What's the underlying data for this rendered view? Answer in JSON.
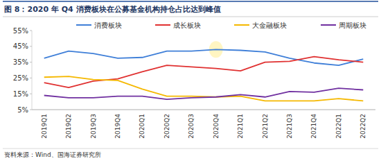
{
  "chart_data": {
    "type": "line",
    "title": "图 8：2020 年 Q4 消费板块在公募基金机构持仓占比达到峰值",
    "source": "资料来源：Wind、国海证券研究所",
    "categories": [
      "2019Q1",
      "2019Q2",
      "2019Q3",
      "2019Q4",
      "2020Q1",
      "2020Q2",
      "2020Q3",
      "2020Q4",
      "2021Q1",
      "2021Q2",
      "2021Q3",
      "2021Q4",
      "2022Q1",
      "2022Q2"
    ],
    "series": [
      {
        "name": "消费板块",
        "color": "#3f7fd8",
        "values": [
          37.5,
          42,
          40.5,
          37.5,
          38,
          42,
          42,
          43,
          42.5,
          41.5,
          37.5,
          34.5,
          33,
          37
        ]
      },
      {
        "name": "成长板块",
        "color": "#e03131",
        "values": [
          22,
          19,
          23,
          24.5,
          29,
          33,
          32,
          31,
          29.5,
          35,
          35.5,
          38.5,
          36.5,
          35
        ]
      },
      {
        "name": "大金融板块",
        "color": "#f5b800",
        "values": [
          25.5,
          26,
          24,
          23.5,
          18,
          13.5,
          13.5,
          13,
          13.5,
          10.5,
          10.5,
          10.5,
          12,
          10.5
        ]
      },
      {
        "name": "周期板块",
        "color": "#7030a0",
        "values": [
          14,
          12.5,
          12.5,
          13.5,
          13.5,
          11.5,
          12.5,
          13,
          14.5,
          13,
          16.5,
          16,
          18.5,
          17.5
        ]
      }
    ],
    "ylim": [
      5,
      55
    ],
    "yticks": [
      {
        "value": 5,
        "label": "5%"
      },
      {
        "value": 15,
        "label": "15%"
      },
      {
        "value": 25,
        "label": "25%"
      },
      {
        "value": 35,
        "label": "35%"
      },
      {
        "value": 45,
        "label": "45%"
      },
      {
        "value": 55,
        "label": "55%"
      }
    ],
    "grid": false,
    "legend": "top"
  }
}
